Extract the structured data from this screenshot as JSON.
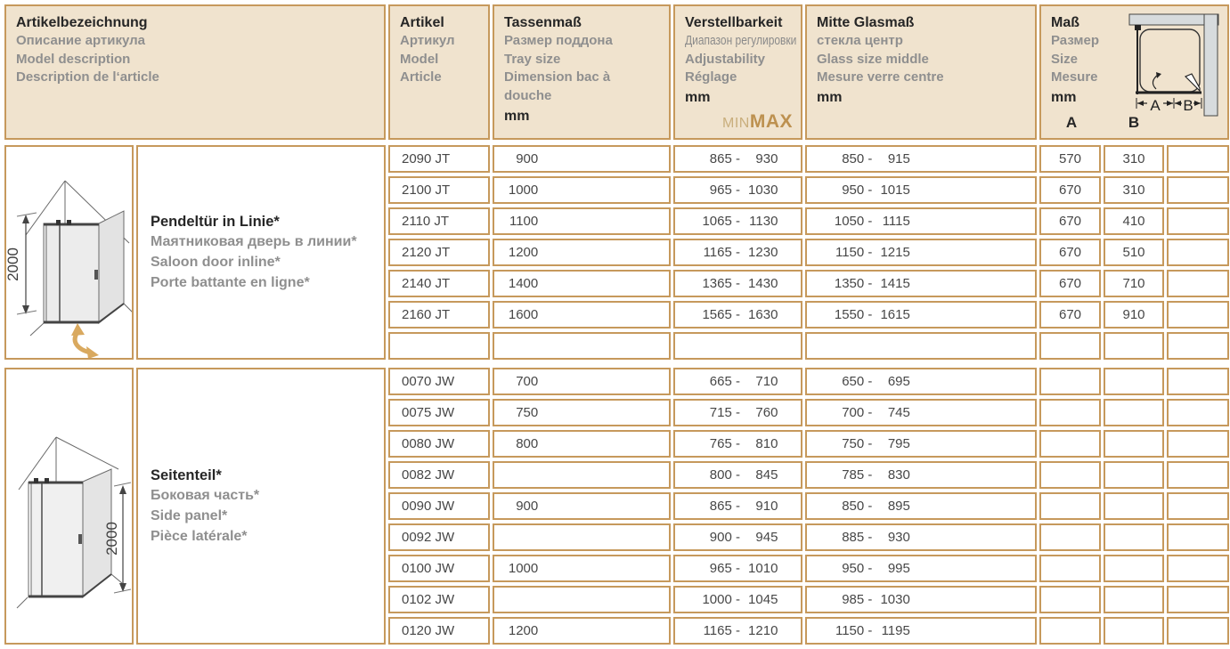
{
  "colors": {
    "border_tan": "#C6995C",
    "header_beige": "#F0E3CE",
    "min_tan": "#C9AE7C",
    "max_tan": "#BD9150",
    "arrow_tan": "#D9A95F",
    "wall_gray": "#D7DBDD",
    "text_dark": "#262626",
    "text_gray": "#8F8F8F",
    "text_data": "#474747"
  },
  "header": {
    "col_model": {
      "de": "Artikelbezeichnung",
      "ru": "Описание артикула",
      "en": "Model description",
      "fr": "Description de l‘article"
    },
    "col_article": {
      "de": "Artikel",
      "ru": "Артикул",
      "en": "Model",
      "fr": "Article"
    },
    "col_tray": {
      "de": "Tassenmaß",
      "ru": "Размер поддона",
      "en": "Tray size",
      "fr": "Dimension bac à douche",
      "unit": "mm"
    },
    "col_adjust": {
      "de": "Verstellbarkeit",
      "ru": "Диапазон регулировки",
      "en": "Adjustability",
      "fr": "Réglage",
      "unit": "mm",
      "min_label": "MIN",
      "max_label": "MAX"
    },
    "col_glass": {
      "de": "Mitte Glasmaß",
      "ru": "стекла центр",
      "en": "Glass size middle",
      "fr": "Mesure verre centre",
      "unit": "mm"
    },
    "col_size": {
      "de": "Maß",
      "ru": "Размер",
      "en": "Size",
      "fr": "Mesure",
      "unit": "mm",
      "a_label": "A",
      "b_label": "B"
    }
  },
  "sections": [
    {
      "title": {
        "de": "Pendeltür in Linie*",
        "ru": "Маятниковая дверь в линии*",
        "en": "Saloon door inline*",
        "fr": "Porte battante en ligne*"
      },
      "dimension_label": "2000",
      "rows": [
        {
          "artikel": "2090 JT",
          "tray": "900",
          "adj_min": "865",
          "adj_max": "930",
          "glass_min": "850",
          "glass_max": "915",
          "a": "570",
          "b": "310"
        },
        {
          "artikel": "2100 JT",
          "tray": "1000",
          "adj_min": "965",
          "adj_max": "1030",
          "glass_min": "950",
          "glass_max": "1015",
          "a": "670",
          "b": "310"
        },
        {
          "artikel": "2110 JT",
          "tray": "1100",
          "adj_min": "1065",
          "adj_max": "1130",
          "glass_min": "1050",
          "glass_max": "1115",
          "a": "670",
          "b": "410"
        },
        {
          "artikel": "2120 JT",
          "tray": "1200",
          "adj_min": "1165",
          "adj_max": "1230",
          "glass_min": "1150",
          "glass_max": "1215",
          "a": "670",
          "b": "510"
        },
        {
          "artikel": "2140 JT",
          "tray": "1400",
          "adj_min": "1365",
          "adj_max": "1430",
          "glass_min": "1350",
          "glass_max": "1415",
          "a": "670",
          "b": "710"
        },
        {
          "artikel": "2160 JT",
          "tray": "1600",
          "adj_min": "1565",
          "adj_max": "1630",
          "glass_min": "1550",
          "glass_max": "1615",
          "a": "670",
          "b": "910"
        },
        {
          "artikel": "",
          "tray": "",
          "adj_min": "",
          "adj_max": "",
          "glass_min": "",
          "glass_max": "",
          "a": "",
          "b": ""
        }
      ]
    },
    {
      "title": {
        "de": "Seitenteil*",
        "ru": "Боковая часть*",
        "en": "Side panel*",
        "fr": "Pièce latérale*"
      },
      "dimension_label": "2000",
      "rows": [
        {
          "artikel": "0070 JW",
          "tray": "700",
          "adj_min": "665",
          "adj_max": "710",
          "glass_min": "650",
          "glass_max": "695",
          "a": "",
          "b": ""
        },
        {
          "artikel": "0075 JW",
          "tray": "750",
          "adj_min": "715",
          "adj_max": "760",
          "glass_min": "700",
          "glass_max": "745",
          "a": "",
          "b": ""
        },
        {
          "artikel": "0080 JW",
          "tray": "800",
          "adj_min": "765",
          "adj_max": "810",
          "glass_min": "750",
          "glass_max": "795",
          "a": "",
          "b": ""
        },
        {
          "artikel": "0082 JW",
          "tray": "",
          "adj_min": "800",
          "adj_max": "845",
          "glass_min": "785",
          "glass_max": "830",
          "a": "",
          "b": ""
        },
        {
          "artikel": "0090 JW",
          "tray": "900",
          "adj_min": "865",
          "adj_max": "910",
          "glass_min": "850",
          "glass_max": "895",
          "a": "",
          "b": ""
        },
        {
          "artikel": "0092 JW",
          "tray": "",
          "adj_min": "900",
          "adj_max": "945",
          "glass_min": "885",
          "glass_max": "930",
          "a": "",
          "b": ""
        },
        {
          "artikel": "0100 JW",
          "tray": "1000",
          "adj_min": "965",
          "adj_max": "1010",
          "glass_min": "950",
          "glass_max": "995",
          "a": "",
          "b": ""
        },
        {
          "artikel": "0102 JW",
          "tray": "",
          "adj_min": "1000",
          "adj_max": "1045",
          "glass_min": "985",
          "glass_max": "1030",
          "a": "",
          "b": ""
        },
        {
          "artikel": "0120 JW",
          "tray": "1200",
          "adj_min": "1165",
          "adj_max": "1210",
          "glass_min": "1150",
          "glass_max": "1195",
          "a": "",
          "b": ""
        }
      ]
    }
  ]
}
